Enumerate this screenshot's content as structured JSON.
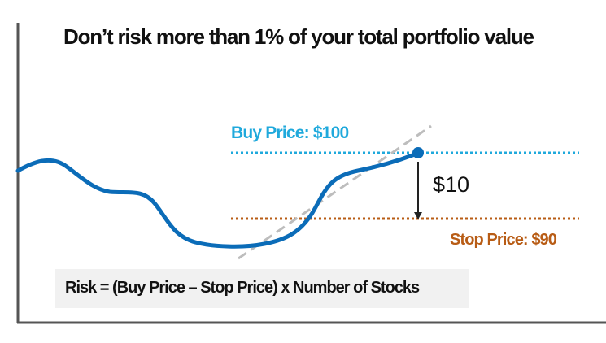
{
  "title": "Don’t risk more than 1% of your total portfolio value",
  "buy_price": {
    "label": "Buy Price: $100",
    "value": 100,
    "color": "#1fa9dc"
  },
  "stop_price": {
    "label": "Stop Price: $90",
    "value": 90,
    "color": "#b85c15"
  },
  "difference_label": "$10",
  "formula": "Risk = (Buy Price – Stop Price) x Number of Stocks",
  "colors": {
    "price_line": "#0b6cb8",
    "trend_line": "#bdbdbd",
    "axes": "#555555",
    "formula_background": "#f1f1f1"
  }
}
